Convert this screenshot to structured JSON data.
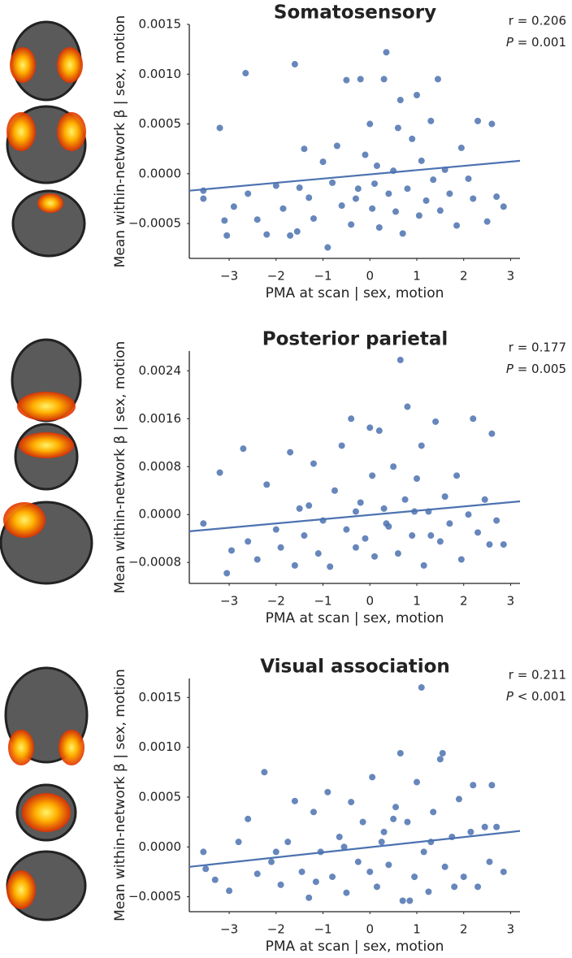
{
  "chart_data": [
    {
      "type": "scatter",
      "title": "Somatosensory",
      "x_label": "PMA at scan | sex, motion",
      "y_label": "Mean within-network β | sex, motion",
      "stats": {
        "r": "r = 0.206",
        "p_symbol": "P",
        "p_text": " = 0.001"
      },
      "color": "#4c72b0",
      "xlim": [
        -3.85,
        3.2
      ],
      "ylim": [
        -0.00085,
        0.0015
      ],
      "xticks": [
        {
          "value": -3,
          "label": "−3"
        },
        {
          "value": -2,
          "label": "−2"
        },
        {
          "value": -1,
          "label": "−1"
        },
        0,
        1,
        2,
        3
      ],
      "yticks": [
        {
          "value": -0.0005,
          "label": "−0.0005"
        },
        {
          "value": 0,
          "label": "0.0000"
        },
        0.0005,
        {
          "value": 0.001,
          "label": "0.0010"
        },
        0.0015
      ],
      "fit": {
        "x": [
          -3.85,
          3.2
        ],
        "y": [
          -0.00017,
          0.00013
        ]
      },
      "x": [
        -3.55,
        -3.55,
        -3.2,
        -3.1,
        -3.05,
        -2.9,
        -2.65,
        -2.6,
        -2.4,
        -2.2,
        -2.0,
        -1.85,
        -1.7,
        -1.6,
        -1.55,
        -1.5,
        -1.4,
        -1.3,
        -1.2,
        -1.0,
        -0.9,
        -0.8,
        -0.7,
        -0.6,
        -0.5,
        -0.4,
        -0.3,
        -0.2,
        -0.1,
        0.0,
        0.05,
        0.1,
        0.2,
        0.3,
        0.35,
        0.4,
        0.5,
        0.6,
        0.65,
        0.7,
        0.8,
        0.9,
        1.0,
        1.05,
        1.1,
        1.2,
        1.3,
        1.45,
        1.5,
        1.6,
        1.7,
        1.85,
        1.95,
        2.1,
        2.2,
        2.3,
        2.5,
        2.6,
        2.7,
        2.85,
        0.15,
        -0.25,
        0.55,
        1.35
      ],
      "y": [
        -0.00025,
        -0.00017,
        0.00046,
        -0.00047,
        -0.00062,
        -0.00033,
        0.00101,
        -0.0002,
        -0.00046,
        -0.00061,
        -0.00012,
        -0.00035,
        -0.00062,
        0.0011,
        -0.00058,
        -0.00014,
        0.00025,
        -0.00024,
        -0.00045,
        0.00012,
        -0.00074,
        -9e-05,
        0.00028,
        -0.00032,
        0.00094,
        -0.00051,
        -0.00025,
        0.00095,
        0.00019,
        0.0005,
        -0.00035,
        -0.0001,
        -0.00054,
        0.00095,
        0.00122,
        -0.0002,
        3e-05,
        0.00046,
        0.00074,
        -0.0006,
        -0.00015,
        0.00035,
        0.00079,
        -0.00042,
        0.00013,
        -0.00027,
        0.00053,
        0.00095,
        -0.00037,
        4e-05,
        -0.0002,
        -0.00052,
        0.00026,
        -5e-05,
        -0.00025,
        0.00053,
        -0.00048,
        0.0005,
        -0.00023,
        -0.00033,
        8e-05,
        -0.00015,
        -0.00038,
        -6e-05
      ]
    },
    {
      "type": "scatter",
      "title": "Posterior parietal",
      "x_label": "PMA at scan | sex, motion",
      "y_label": "Mean within-network β | sex, motion",
      "stats": {
        "r": "r = 0.177",
        "p_symbol": "P",
        "p_text": " = 0.005"
      },
      "color": "#4c72b0",
      "xlim": [
        -3.85,
        3.2
      ],
      "ylim": [
        -0.00115,
        0.00273
      ],
      "xticks": [
        {
          "value": -3,
          "label": "−3"
        },
        {
          "value": -2,
          "label": "−2"
        },
        {
          "value": -1,
          "label": "−1"
        },
        0,
        1,
        2,
        3
      ],
      "yticks": [
        {
          "value": -0.0008,
          "label": "−0.0008"
        },
        {
          "value": 0,
          "label": "0.0000"
        },
        0.0008,
        0.0016,
        0.0024
      ],
      "fit": {
        "x": [
          -3.85,
          3.2
        ],
        "y": [
          -0.00028,
          0.00022
        ]
      },
      "x": [
        -3.55,
        -3.2,
        -3.05,
        -2.95,
        -2.7,
        -2.6,
        -2.4,
        -2.2,
        -2.0,
        -1.9,
        -1.7,
        -1.6,
        -1.5,
        -1.4,
        -1.2,
        -1.1,
        -1.0,
        -0.85,
        -0.75,
        -0.6,
        -0.5,
        -0.4,
        -0.3,
        -0.2,
        -0.1,
        0.0,
        0.05,
        0.1,
        0.2,
        0.3,
        0.4,
        0.5,
        0.6,
        0.65,
        0.75,
        0.8,
        0.9,
        1.0,
        1.1,
        1.15,
        1.25,
        1.4,
        1.5,
        1.6,
        1.7,
        1.85,
        1.95,
        2.1,
        2.2,
        2.3,
        2.45,
        2.55,
        2.6,
        2.7,
        2.85,
        -0.3,
        0.35,
        0.95,
        1.3,
        -1.3
      ],
      "y": [
        -0.00015,
        0.0007,
        -0.00098,
        -0.0006,
        0.0011,
        -0.00045,
        -0.00075,
        0.0005,
        -0.00025,
        -0.00055,
        0.00104,
        -0.00085,
        0.0001,
        -0.00035,
        0.00085,
        -0.00065,
        -0.0001,
        -0.00087,
        0.0004,
        0.00115,
        -0.00025,
        0.0016,
        -0.00055,
        0.0002,
        -0.0004,
        0.00145,
        0.00065,
        -0.0007,
        0.0014,
        0.0001,
        -0.0002,
        0.0008,
        -0.00065,
        0.00258,
        0.00025,
        0.0018,
        -0.00035,
        0.0006,
        0.00115,
        -0.00085,
        5e-05,
        0.00155,
        -0.00045,
        0.0003,
        -0.00015,
        0.00065,
        -0.00075,
        0,
        0.0016,
        -0.0003,
        0.00025,
        -0.0005,
        0.00135,
        -0.0001,
        -0.0005,
        5e-05,
        -0.00015,
        5e-05,
        -0.00035,
        0.00015
      ]
    },
    {
      "type": "scatter",
      "title": "Visual association",
      "x_label": "PMA at scan | sex, motion",
      "y_label": "Mean within-network β | sex, motion",
      "stats": {
        "r": "r = 0.211",
        "p_symbol": "P",
        "p_text": " < 0.001"
      },
      "color": "#4c72b0",
      "xlim": [
        -3.85,
        3.2
      ],
      "ylim": [
        -0.00065,
        0.00169
      ],
      "xticks": [
        {
          "value": -3,
          "label": "−3"
        },
        {
          "value": -2,
          "label": "−2"
        },
        {
          "value": -1,
          "label": "−1"
        },
        0,
        1,
        2,
        3
      ],
      "yticks": [
        {
          "value": -0.0005,
          "label": "−0.0005"
        },
        {
          "value": 0,
          "label": "0.0000"
        },
        0.0005,
        {
          "value": 0.001,
          "label": "0.0010"
        },
        0.0015
      ],
      "fit": {
        "x": [
          -3.85,
          3.2
        ],
        "y": [
          -0.0002,
          0.00016
        ]
      },
      "x": [
        -3.55,
        -3.5,
        -3.3,
        -3.0,
        -2.8,
        -2.6,
        -2.4,
        -2.25,
        -2.1,
        -1.9,
        -1.75,
        -1.6,
        -1.45,
        -1.3,
        -1.2,
        -1.05,
        -0.9,
        -0.8,
        -0.65,
        -0.5,
        -0.4,
        -0.25,
        -0.15,
        0.0,
        0.05,
        0.15,
        0.3,
        0.4,
        0.55,
        0.65,
        0.7,
        0.8,
        0.95,
        1.0,
        1.1,
        1.15,
        1.25,
        1.35,
        1.5,
        1.55,
        1.6,
        1.75,
        1.9,
        2.0,
        2.15,
        2.2,
        2.3,
        2.45,
        2.55,
        2.6,
        2.7,
        2.85,
        -0.55,
        0.25,
        0.85,
        1.3,
        -1.15,
        0.5,
        1.8,
        -2.0
      ],
      "y": [
        -5e-05,
        -0.00022,
        -0.00033,
        -0.00044,
        5e-05,
        0.00028,
        -0.00027,
        0.00075,
        -0.00015,
        -0.00038,
        5e-05,
        0.00046,
        -0.00025,
        -0.00051,
        0.00035,
        -5e-05,
        0.00055,
        -0.0003,
        0.0001,
        -0.00046,
        0.00045,
        -0.00015,
        0.00025,
        -0.00025,
        0.0007,
        -0.0004,
        0.00015,
        -0.00018,
        0.0004,
        0.00094,
        -0.00054,
        0.00025,
        -0.0003,
        0.00065,
        0.0016,
        -5e-05,
        -0.00045,
        0.00035,
        0.00088,
        0.00094,
        -0.0002,
        0.0001,
        0.00048,
        -0.0003,
        0.00015,
        0.00062,
        -0.0004,
        0.0002,
        -0.00015,
        0.00062,
        0.0002,
        -0.00025,
        0,
        5e-05,
        -0.00054,
        5e-05,
        -0.00035,
        0.00028,
        -0.0004,
        -5e-05
      ]
    }
  ]
}
